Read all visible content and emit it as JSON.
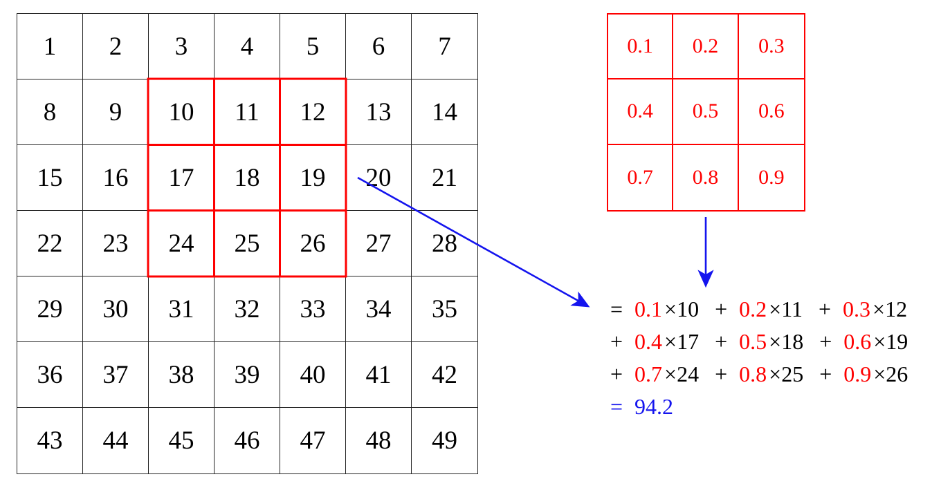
{
  "colors": {
    "red": "#fe0000",
    "blue": "#1414ee",
    "black": "#000000",
    "grid_line": "#222222",
    "background": "#ffffff"
  },
  "input_grid": {
    "rows": 7,
    "cols": 7,
    "values": [
      [
        1,
        2,
        3,
        4,
        5,
        6,
        7
      ],
      [
        8,
        9,
        10,
        11,
        12,
        13,
        14
      ],
      [
        15,
        16,
        17,
        18,
        19,
        20,
        21
      ],
      [
        22,
        23,
        24,
        25,
        26,
        27,
        28
      ],
      [
        29,
        30,
        31,
        32,
        33,
        34,
        35
      ],
      [
        36,
        37,
        38,
        39,
        40,
        41,
        42
      ],
      [
        43,
        44,
        45,
        46,
        47,
        48,
        49
      ]
    ]
  },
  "highlight": {
    "cells": [
      10,
      11,
      12,
      17,
      18,
      19,
      24,
      25,
      26
    ],
    "row_start": 2,
    "col_start": 3,
    "rows": 3,
    "cols": 3
  },
  "kernel": {
    "rows": 3,
    "cols": 3,
    "values": [
      [
        "0.1",
        "0.2",
        "0.3"
      ],
      [
        "0.4",
        "0.5",
        "0.6"
      ],
      [
        "0.7",
        "0.8",
        "0.9"
      ]
    ]
  },
  "equation": {
    "lines": [
      [
        {
          "t": "=",
          "c": "black"
        },
        {
          "t": "0.1",
          "c": "red"
        },
        {
          "t": "×10",
          "c": "black"
        },
        {
          "t": "+",
          "c": "black"
        },
        {
          "t": "0.2",
          "c": "red"
        },
        {
          "t": "×11",
          "c": "black"
        },
        {
          "t": "+",
          "c": "black"
        },
        {
          "t": "0.3",
          "c": "red"
        },
        {
          "t": "×12",
          "c": "black"
        }
      ],
      [
        {
          "t": "+",
          "c": "black"
        },
        {
          "t": "0.4",
          "c": "red"
        },
        {
          "t": "×17",
          "c": "black"
        },
        {
          "t": "+",
          "c": "black"
        },
        {
          "t": "0.5",
          "c": "red"
        },
        {
          "t": "×18",
          "c": "black"
        },
        {
          "t": "+",
          "c": "black"
        },
        {
          "t": "0.6",
          "c": "red"
        },
        {
          "t": "×19",
          "c": "black"
        }
      ],
      [
        {
          "t": "+",
          "c": "black"
        },
        {
          "t": "0.7",
          "c": "red"
        },
        {
          "t": "×24",
          "c": "black"
        },
        {
          "t": "+",
          "c": "black"
        },
        {
          "t": "0.8",
          "c": "red"
        },
        {
          "t": "×25",
          "c": "black"
        },
        {
          "t": "+",
          "c": "black"
        },
        {
          "t": "0.9",
          "c": "red"
        },
        {
          "t": "×26",
          "c": "black"
        }
      ],
      [
        {
          "t": "=",
          "c": "blue"
        },
        {
          "t": "94.2",
          "c": "blue"
        }
      ]
    ]
  }
}
